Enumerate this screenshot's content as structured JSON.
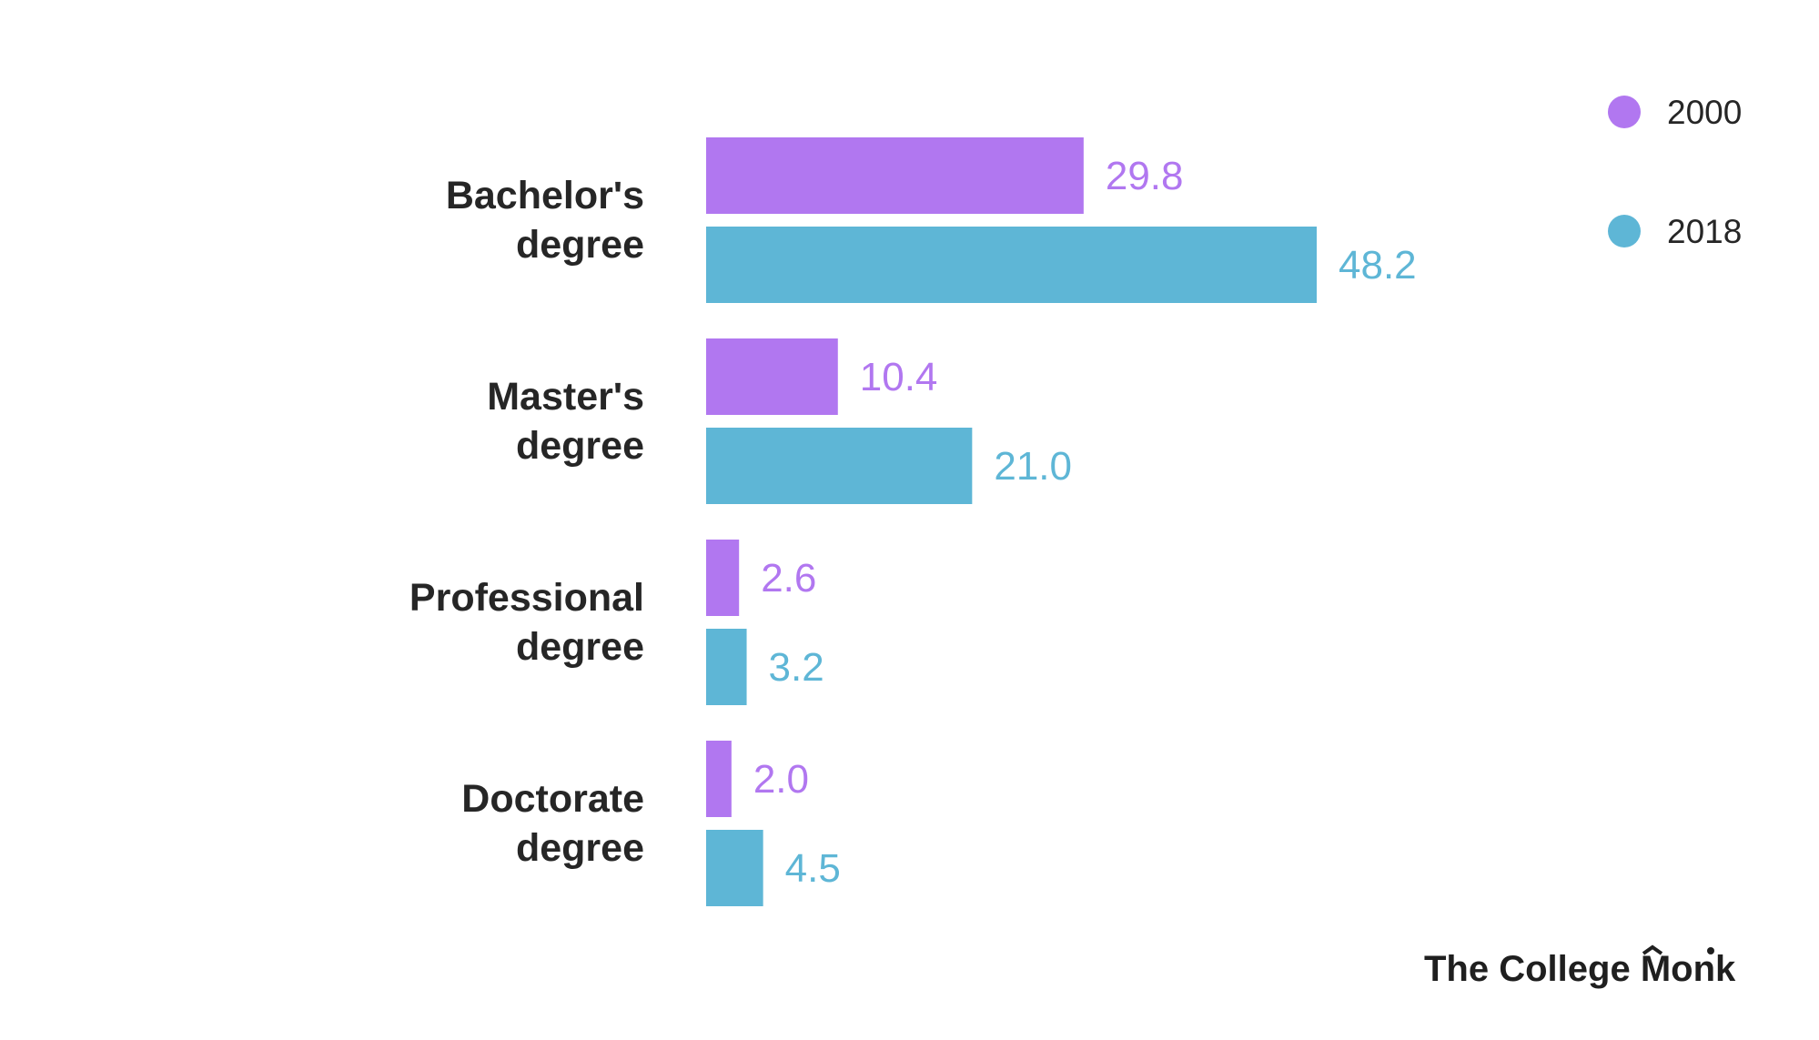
{
  "chart_data": {
    "type": "bar",
    "orientation": "horizontal",
    "categories": [
      [
        "Bachelor's",
        "degree"
      ],
      [
        "Master's",
        "degree"
      ],
      [
        "Professional",
        "degree"
      ],
      [
        "Doctorate",
        "degree"
      ]
    ],
    "series": [
      {
        "name": "2000",
        "color": "#B177F0",
        "values": [
          29.8,
          10.4,
          2.6,
          2.0
        ],
        "labels": [
          "29.8",
          "10.4",
          "2.6",
          "2.0"
        ]
      },
      {
        "name": "2018",
        "color": "#5EB6D6",
        "values": [
          48.2,
          21.0,
          3.2,
          4.5
        ],
        "labels": [
          "48.2",
          "21.0",
          "3.2",
          "4.5"
        ]
      }
    ],
    "xlim": [
      0,
      48.2
    ],
    "grid": false,
    "legend_position": "top-right"
  },
  "brand": {
    "text_before": "The Colleg",
    "text_e": "e",
    "text_mid": " Mo",
    "text_n": "n",
    "text_after": "k",
    "logo_name": "the-college-monk-logo"
  }
}
